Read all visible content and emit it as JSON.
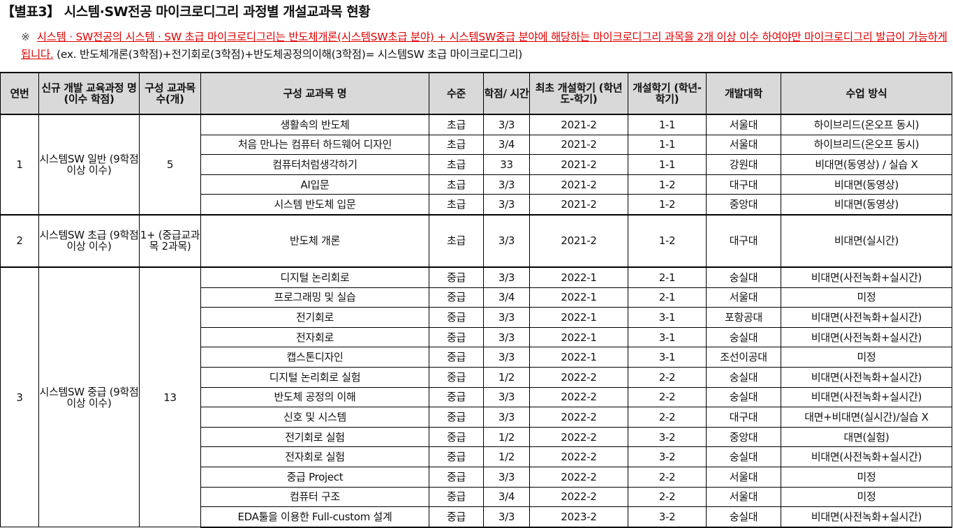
{
  "title": "【별표3】 시스템·SW전공 마이크로디그리 과정별 개설교과목 현황",
  "note": {
    "mark": "※",
    "red_text": "시스템 · SW전공의 시스템 · SW 초급 마이크로디그리는 반도체개론(시스템SW초급 분야) + 시스템SW중급 분야에 해당하는 마이크로디그리 과목을 2개 이상 이수 하여야만 마이크로디그리 발급이 가능하게 됩니다.",
    "example": " (ex. 반도체개론(3학점)+전기회로(3학점)+반도체공정의이해(3학점)= 시스템SW 초급 마이크로디그리)",
    "colors": {
      "emphasis": "#e00000"
    }
  },
  "headers": [
    "연번",
    "신규 개발 교육과정 명 (이수 학점)",
    "구성 교과목 수(개)",
    "구성 교과목 명",
    "수준",
    "학점/ 시간",
    "최초 개설학기 (학년도-학기)",
    "개설학기 (학년-학기)",
    "개발대학",
    "수업 방식"
  ],
  "groups": [
    {
      "no": "1",
      "program": "시스템SW 일반 (9학점 이상 이수)",
      "count": "5",
      "courses": [
        [
          "생활속의 반도체",
          "초급",
          "3/3",
          "2021-2",
          "1-1",
          "서울대",
          "하이브리드(온오프 동시)"
        ],
        [
          "처음 만나는 컴퓨터 하드웨어 디자인",
          "초급",
          "3/4",
          "2021-2",
          "1-1",
          "서울대",
          "하이브리드(온오프 동시)"
        ],
        [
          "컴퓨터처럼생각하기",
          "초급",
          "33",
          "2021-2",
          "1-1",
          "강원대",
          "비대면(동영상) / 실습 X"
        ],
        [
          "AI입문",
          "초급",
          "3/3",
          "2021-2",
          "1-2",
          "대구대",
          "비대면(동영상)"
        ],
        [
          "시스템 반도체 입문",
          "초급",
          "3/3",
          "2021-2",
          "1-2",
          "중앙대",
          "비대면(동영상)"
        ]
      ]
    },
    {
      "no": "2",
      "program": "시스템SW 초급 (9학점 이상 이수)",
      "count": "1+ (중급교과목 2과목)",
      "courses": [
        [
          "반도체 개론",
          "초급",
          "3/3",
          "2021-2",
          "1-2",
          "대구대",
          "비대면(실시간)"
        ]
      ]
    },
    {
      "no": "3",
      "program": "시스템SW 중급 (9학점 이상 이수)",
      "count": "13",
      "courses": [
        [
          "디지털 논리회로",
          "중급",
          "3/3",
          "2022-1",
          "2-1",
          "숭실대",
          "비대면(사전녹화+실시간)"
        ],
        [
          "프로그래밍 및 실습",
          "중급",
          "3/4",
          "2022-1",
          "2-1",
          "서울대",
          "미정"
        ],
        [
          "전기회로",
          "중급",
          "3/3",
          "2022-1",
          "3-1",
          "포항공대",
          "비대면(사전녹화+실시간)"
        ],
        [
          "전자회로",
          "중급",
          "3/3",
          "2022-1",
          "3-1",
          "숭실대",
          "비대면(사전녹화+실시간)"
        ],
        [
          "캡스톤디자인",
          "중급",
          "3/3",
          "2022-1",
          "3-1",
          "조선이공대",
          "미정"
        ],
        [
          "디지털 논리회로 실험",
          "중급",
          "1/2",
          "2022-2",
          "2-2",
          "숭실대",
          "비대면(사전녹화+실시간)"
        ],
        [
          "반도체 공정의 이해",
          "중급",
          "3/3",
          "2022-2",
          "2-2",
          "숭실대",
          "비대면(사전녹화+실시간)"
        ],
        [
          "신호 및 시스템",
          "중급",
          "3/3",
          "2022-2",
          "2-2",
          "대구대",
          "대면+비대면(실시간)/실습 X"
        ],
        [
          "전기회로 실험",
          "중급",
          "1/2",
          "2022-2",
          "3-2",
          "중앙대",
          "대면(실험)"
        ],
        [
          "전자회로 실험",
          "중급",
          "1/2",
          "2022-2",
          "3-2",
          "숭실대",
          "비대면(사전녹화+실시간)"
        ],
        [
          "중급 Project",
          "중급",
          "3/3",
          "2022-2",
          "2-2",
          "서울대",
          "미정"
        ],
        [
          "컴퓨터 구조",
          "중급",
          "3/4",
          "2022-2",
          "2-2",
          "서울대",
          "미정"
        ],
        [
          "EDA툴을 이용한 Full-custom 설계",
          "중급",
          "3/3",
          "2023-2",
          "3-2",
          "숭실대",
          "비대면(사전녹화+실시간)"
        ]
      ]
    }
  ]
}
